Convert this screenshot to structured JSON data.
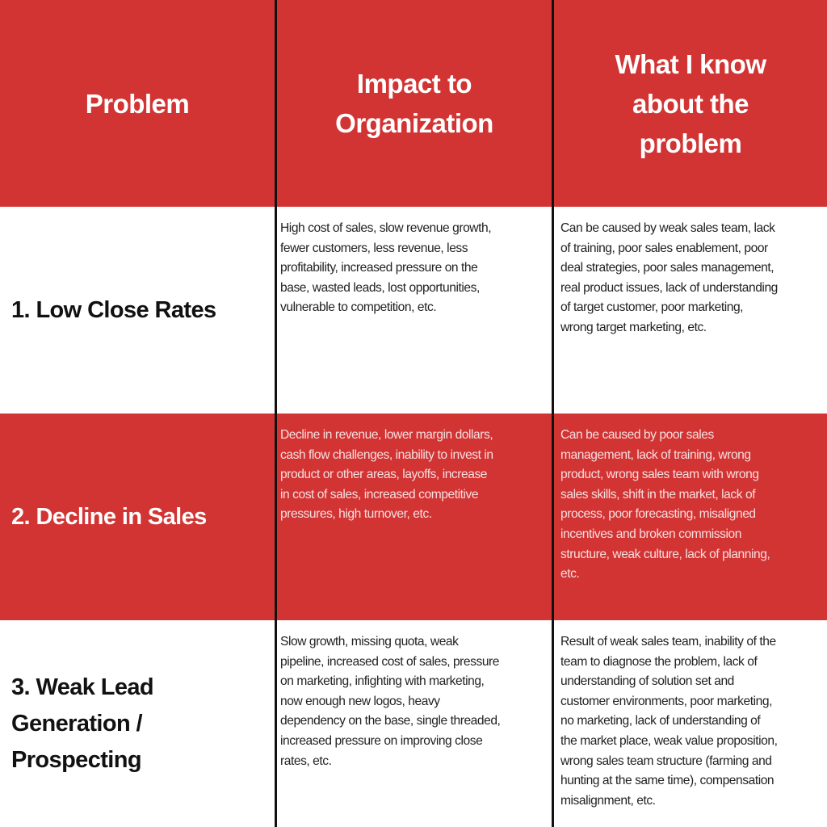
{
  "colors": {
    "accent_red": "#d23434",
    "divider": "#111111"
  },
  "header": {
    "problem": "Problem",
    "impact_lines": [
      "Impact to",
      "Organization"
    ],
    "know_lines": [
      "What I know",
      "about the",
      "problem"
    ]
  },
  "rows": [
    {
      "problem_lines": [
        "1. Low Close Rates"
      ],
      "impact": [
        "High cost of sales, slow revenue growth,",
        "fewer customers, less revenue, less",
        "profitability, increased pressure on the",
        "base, wasted leads, lost opportunities,",
        "vulnerable to competition, etc."
      ],
      "know": [
        "Can be caused by weak sales team, lack",
        "of training, poor sales enablement, poor",
        "deal strategies, poor sales management,",
        "real product issues, lack of understanding",
        "of target customer, poor marketing,",
        "wrong target marketing, etc."
      ]
    },
    {
      "problem_lines": [
        "2. Decline in Sales"
      ],
      "impact": [
        "Decline in revenue, lower margin dollars,",
        "cash flow challenges, inability to invest in",
        "product or other areas, layoffs, increase",
        "in cost of sales, increased competitive",
        "pressures, high turnover, etc."
      ],
      "know": [
        "Can be caused by poor sales",
        "management, lack of training, wrong",
        "product, wrong sales team with wrong",
        "sales skills, shift in the market, lack of",
        "process, poor forecasting, misaligned",
        "incentives and broken commission",
        "structure, weak culture, lack of planning,",
        "etc."
      ]
    },
    {
      "problem_lines": [
        "3. Weak Lead",
        "Generation /",
        "Prospecting"
      ],
      "impact": [
        "Slow growth, missing quota, weak",
        "pipeline, increased cost of sales, pressure",
        "on marketing, infighting with marketing,",
        "now enough new logos, heavy",
        "dependency on the base, single threaded,",
        "increased pressure on improving close",
        "rates, etc."
      ],
      "know": [
        "Result of weak sales team, inability of the",
        "team to diagnose the problem, lack of",
        "understanding of solution set and",
        "customer environments, poor marketing,",
        "no marketing, lack of understanding of",
        "the market place, weak value proposition,",
        "wrong sales team structure (farming and",
        "hunting at the same time), compensation",
        "misalignment, etc."
      ]
    }
  ]
}
